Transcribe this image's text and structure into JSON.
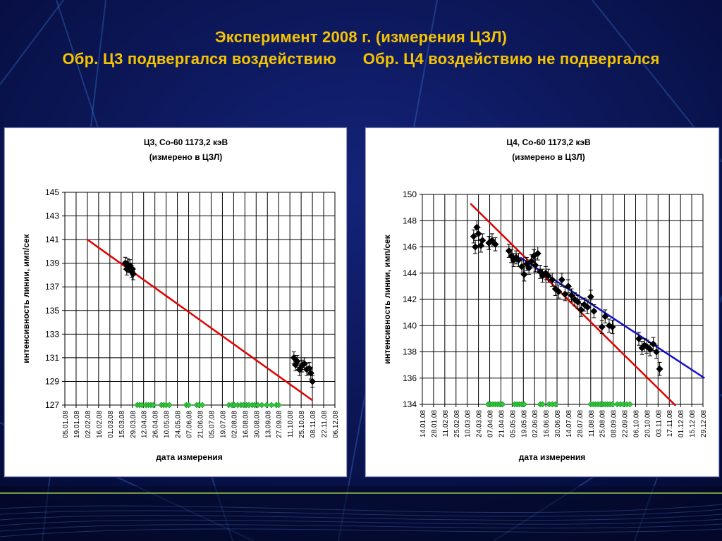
{
  "slide": {
    "title_line1": "Эксперимент 2008 г. (измерения ЦЗЛ)",
    "title_line2": "Обр. Ц3 подвергался воздействию      Обр. Ц4 воздействию не подвергался",
    "colors": {
      "background": "#06104a",
      "title": "#f5c400",
      "streak": "#3d7fd6"
    }
  },
  "chart_data": [
    {
      "type": "scatter",
      "title": "Ц3, Co-60 1173,2 кэВ",
      "subtitle": "(измерено в ЦЗЛ)",
      "xlabel": "дата измерения",
      "ylabel": "интенсивность линии, имп/сек",
      "ylim": [
        127,
        145
      ],
      "yticks": [
        127,
        129,
        131,
        133,
        135,
        137,
        139,
        141,
        143,
        145
      ],
      "xlim": [
        "05.01.08",
        "06.12.08"
      ],
      "xticks": [
        "05.01.08",
        "19.01.08",
        "02.02.08",
        "16.02.08",
        "01.03.08",
        "15.03.08",
        "29.03.08",
        "12.04.08",
        "26.04.08",
        "10.05.08",
        "24.05.08",
        "07.06.08",
        "21.06.08",
        "05.07.08",
        "19.07.08",
        "02.08.08",
        "16.08.08",
        "30.08.08",
        "13.09.08",
        "27.09.08",
        "11.10.08",
        "25.10.08",
        "08.11.08",
        "22.11.08",
        "06.12.08"
      ],
      "grid": true,
      "measurements": [
        [
          "20.03.08",
          139.0
        ],
        [
          "22.03.08",
          138.5
        ],
        [
          "23.03.08",
          138.9
        ],
        [
          "24.03.08",
          138.7
        ],
        [
          "26.03.08",
          138.8
        ],
        [
          "28.03.08",
          138.3
        ],
        [
          "29.03.08",
          138.5
        ],
        [
          "30.03.08",
          138.1
        ],
        [
          "16.10.08",
          131.0
        ],
        [
          "18.10.08",
          130.4
        ],
        [
          "20.10.08",
          130.7
        ],
        [
          "23.10.08",
          130.0
        ],
        [
          "26.10.08",
          130.3
        ],
        [
          "29.10.08",
          130.5
        ],
        [
          "01.11.08",
          130.0
        ],
        [
          "04.11.08",
          130.1
        ],
        [
          "06.11.08",
          129.7
        ],
        [
          "08.11.08",
          129.0
        ]
      ],
      "error_bar": 0.5,
      "trend": {
        "color": "#e00000",
        "from": [
          "02.02.08",
          141.0
        ],
        "to": [
          "08.11.08",
          127.4
        ]
      },
      "markers_baseline": {
        "color": "#2fc93a",
        "y": 127,
        "dates": [
          "04.04.08",
          "07.04.08",
          "10.04.08",
          "15.04.08",
          "18.04.08",
          "21.04.08",
          "24.04.08",
          "04.05.08",
          "07.05.08",
          "10.05.08",
          "14.05.08",
          "04.06.08",
          "07.06.08",
          "17.06.08",
          "20.06.08",
          "24.06.08",
          "27.07.08",
          "31.07.08",
          "03.08.08",
          "07.08.08",
          "11.08.08",
          "14.08.08",
          "18.08.08",
          "21.08.08",
          "25.08.08",
          "28.08.08",
          "01.09.08",
          "06.09.08",
          "12.09.08",
          "18.09.08",
          "24.09.08",
          "27.09.08"
        ]
      }
    },
    {
      "type": "scatter",
      "title": "Ц4, Co-60 1173,2 кэВ",
      "subtitle": "(измерено в ЦЗЛ)",
      "xlabel": "дата измерения",
      "ylabel": "интенсивность линии, имп/сек",
      "ylim": [
        134,
        150
      ],
      "yticks": [
        134,
        136,
        138,
        140,
        142,
        144,
        146,
        148,
        150
      ],
      "xlim": [
        "14.01.08",
        "29.12.08"
      ],
      "xticks": [
        "14.01.08",
        "28.01.08",
        "11.02.08",
        "25.02.08",
        "10.03.08",
        "24.03.08",
        "07.04.08",
        "21.04.08",
        "05.05.08",
        "19.05.08",
        "02.06.08",
        "16.06.08",
        "30.06.08",
        "14.07.08",
        "28.07.08",
        "11.08.08",
        "25.08.08",
        "08.09.08",
        "22.09.08",
        "06.10.08",
        "20.10.08",
        "03.11.08",
        "17.11.08",
        "01.12.08",
        "15.12.08",
        "29.12.08"
      ],
      "grid": true,
      "measurements": [
        [
          "18.03.08",
          146.8
        ],
        [
          "20.03.08",
          146.0
        ],
        [
          "22.03.08",
          147.5
        ],
        [
          "24.03.08",
          147.0
        ],
        [
          "27.03.08",
          146.1
        ],
        [
          "29.03.08",
          146.5
        ],
        [
          "06.04.08",
          146.3
        ],
        [
          "10.04.08",
          146.5
        ],
        [
          "14.04.08",
          146.2
        ],
        [
          "01.05.08",
          145.7
        ],
        [
          "04.05.08",
          145.3
        ],
        [
          "07.05.08",
          145.0
        ],
        [
          "10.05.08",
          145.2
        ],
        [
          "13.05.08",
          145.0
        ],
        [
          "17.05.08",
          144.5
        ],
        [
          "20.05.08",
          143.9
        ],
        [
          "23.05.08",
          144.7
        ],
        [
          "26.05.08",
          144.4
        ],
        [
          "29.05.08",
          144.9
        ],
        [
          "01.06.08",
          145.3
        ],
        [
          "03.06.08",
          144.6
        ],
        [
          "06.06.08",
          145.5
        ],
        [
          "09.06.08",
          144.1
        ],
        [
          "12.06.08",
          143.8
        ],
        [
          "16.06.08",
          144.0
        ],
        [
          "19.06.08",
          143.8
        ],
        [
          "24.06.08",
          143.5
        ],
        [
          "28.06.08",
          142.8
        ],
        [
          "02.07.08",
          142.6
        ],
        [
          "06.07.08",
          143.5
        ],
        [
          "10.07.08",
          142.4
        ],
        [
          "14.07.08",
          143.0
        ],
        [
          "18.07.08",
          142.3
        ],
        [
          "22.07.08",
          142.0
        ],
        [
          "26.07.08",
          141.8
        ],
        [
          "30.07.08",
          141.2
        ],
        [
          "03.08.08",
          141.6
        ],
        [
          "07.08.08",
          141.4
        ],
        [
          "11.08.08",
          142.2
        ],
        [
          "15.08.08",
          141.1
        ],
        [
          "25.08.08",
          139.9
        ],
        [
          "29.08.08",
          140.7
        ],
        [
          "03.09.08",
          140.0
        ],
        [
          "07.09.08",
          139.9
        ],
        [
          "10.10.08",
          139.0
        ],
        [
          "14.10.08",
          138.3
        ],
        [
          "17.10.08",
          138.5
        ],
        [
          "20.10.08",
          138.4
        ],
        [
          "24.10.08",
          138.2
        ],
        [
          "28.10.08",
          138.6
        ],
        [
          "01.11.08",
          138.0
        ],
        [
          "05.11.08",
          136.7
        ]
      ],
      "error_bar": 0.5,
      "trend_red": {
        "color": "#e00000",
        "from": [
          "14.03.08",
          149.3
        ],
        "to": [
          "25.11.08",
          133.9
        ]
      },
      "trend_blue": {
        "color": "#1010c8",
        "from": [
          "15.05.08",
          145.2
        ],
        "to": [
          "31.12.08",
          136.0
        ]
      },
      "markers_baseline": {
        "color": "#2fc93a",
        "y": 134,
        "dates": [
          "05.04.08",
          "08.04.08",
          "11.04.08",
          "14.04.08",
          "17.04.08",
          "20.04.08",
          "23.04.08",
          "08.05.08",
          "11.05.08",
          "14.05.08",
          "17.05.08",
          "20.05.08",
          "09.06.08",
          "12.06.08",
          "20.06.08",
          "24.06.08",
          "28.06.08",
          "11.08.08",
          "14.08.08",
          "17.08.08",
          "20.08.08",
          "23.08.08",
          "26.08.08",
          "29.08.08",
          "01.09.08",
          "04.09.08",
          "07.09.08",
          "13.09.08",
          "17.09.08",
          "21.09.08",
          "25.09.08",
          "29.09.08"
        ]
      }
    }
  ]
}
